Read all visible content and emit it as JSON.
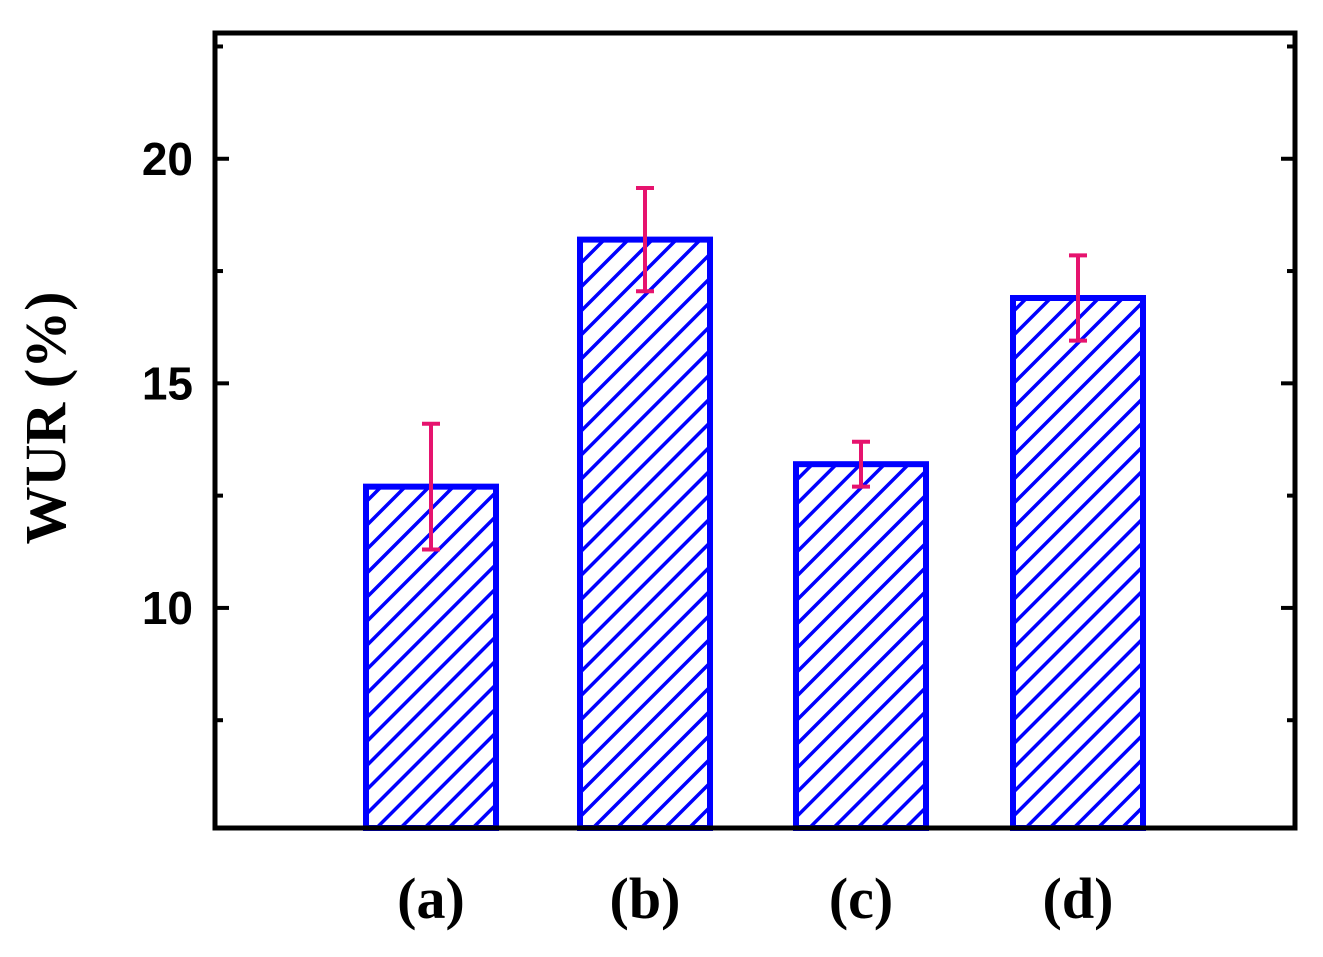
{
  "chart_data": {
    "type": "bar",
    "title": "",
    "xlabel": "",
    "ylabel": "WUR (%)",
    "categories": [
      "(a)",
      "(b)",
      "(c)",
      "(d)"
    ],
    "values": [
      12.7,
      18.2,
      13.2,
      16.9
    ],
    "errors": [
      1.4,
      1.15,
      0.5,
      0.95
    ],
    "ylim": [
      5.1,
      22.8
    ],
    "yticks_major": [
      10,
      15,
      20
    ],
    "ytick_labels": [
      "10",
      "15",
      "20"
    ],
    "yticks_minor": [
      7.5,
      12.5,
      17.5,
      22.5
    ],
    "grid": false,
    "legend": "none",
    "colors": {
      "bar_outline": "#0000ff",
      "hatch": "#0000ff",
      "error_bar": "#e6136e",
      "axes": "#000000"
    }
  }
}
